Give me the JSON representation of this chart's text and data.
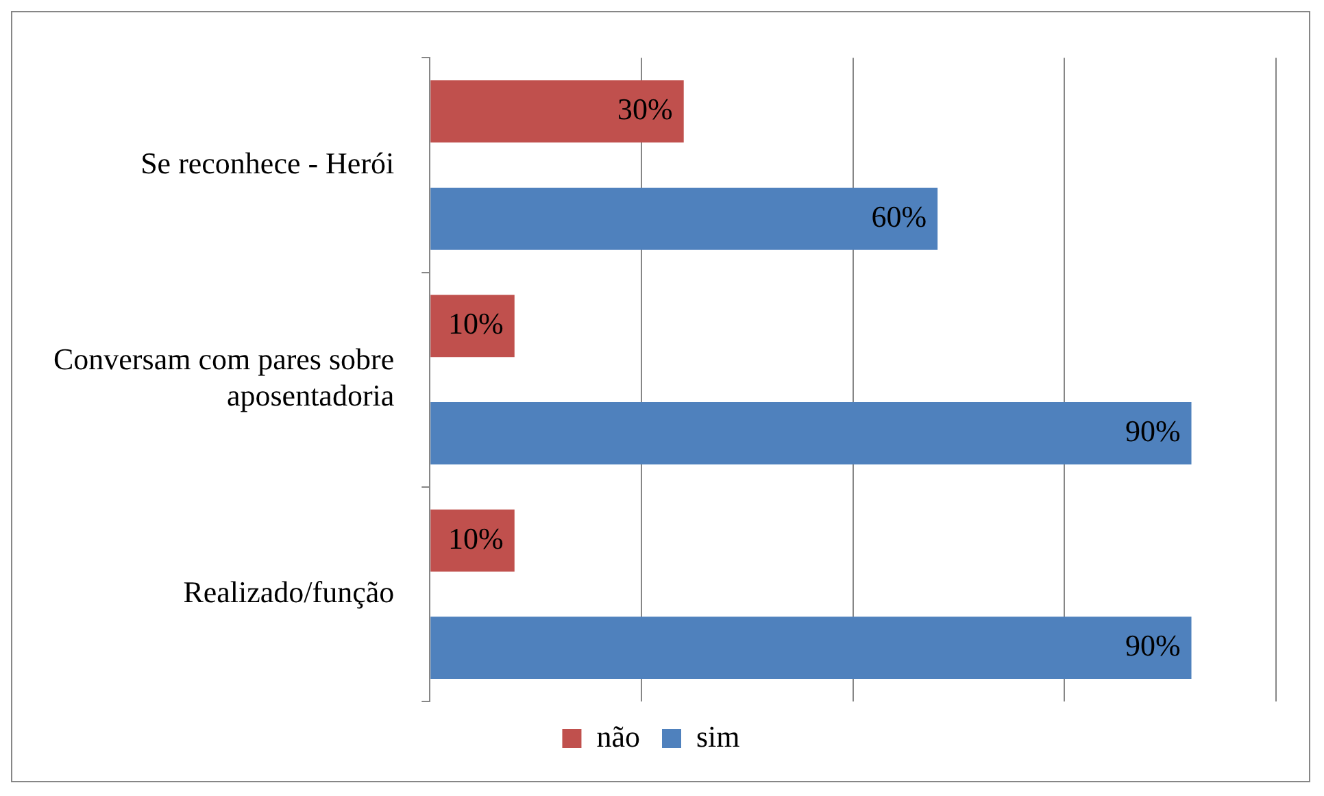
{
  "chart_data": {
    "type": "bar",
    "orientation": "horizontal",
    "categories": [
      "Se reconhece - Herói",
      "Conversam com pares sobre aposentadoria",
      "Realizado/função"
    ],
    "series": [
      {
        "name": "não",
        "color": "#c0504d",
        "values": [
          30,
          10,
          10
        ],
        "value_labels": [
          "30%",
          "10%",
          "10%"
        ]
      },
      {
        "name": "sim",
        "color": "#4f81bd",
        "values": [
          60,
          90,
          90
        ],
        "value_labels": [
          "60%",
          "90%",
          "90%"
        ]
      }
    ],
    "xlim": [
      0,
      100
    ],
    "xticks": [
      {
        "value": 0,
        "label": null
      },
      {
        "value": 25,
        "label": null
      },
      {
        "value": 50,
        "label": null
      },
      {
        "value": 75,
        "label": null
      },
      {
        "value": 100,
        "label": null
      }
    ],
    "grid": "x",
    "legend": "bottom",
    "tick_labels": "y"
  }
}
